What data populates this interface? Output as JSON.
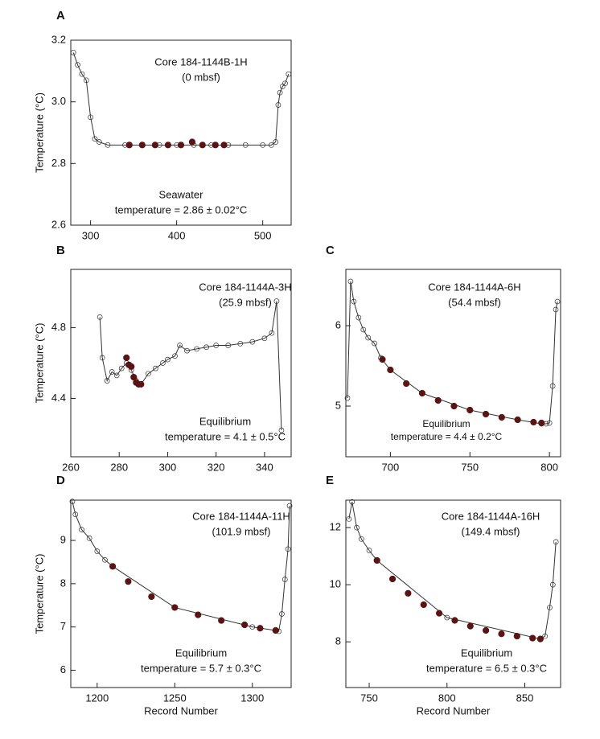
{
  "chart_data": [
    {
      "type": "scatter",
      "panel": "A",
      "xlim": [
        277,
        533
      ],
      "ylim": [
        2.6,
        3.2
      ],
      "xticks": [
        300,
        400,
        500
      ],
      "yticks": [
        2.6,
        2.8,
        {
          "value": 3.0,
          "label": "3.0"
        },
        3.2
      ],
      "ylabel": "Temperature (°C)",
      "annotations": {
        "top": [
          "Core 184-1144B-1H",
          "(0 mbsf)"
        ],
        "bottom": [
          "Seawater",
          "temperature = 2.86 ± 0.02°C"
        ]
      },
      "series": [
        {
          "color": "#333333",
          "marker": "open",
          "line": true,
          "x": [
            280,
            285,
            290,
            295,
            300,
            305,
            310,
            320,
            340,
            360,
            380,
            400,
            420,
            440,
            460,
            480,
            500,
            510,
            515,
            518,
            520,
            523,
            526,
            530
          ],
          "values": [
            3.16,
            3.12,
            3.09,
            3.07,
            2.95,
            2.88,
            2.87,
            2.86,
            2.86,
            2.86,
            2.86,
            2.86,
            2.86,
            2.86,
            2.86,
            2.86,
            2.86,
            2.86,
            2.87,
            2.99,
            3.03,
            3.05,
            3.06,
            3.09
          ]
        },
        {
          "color": "#5a1414",
          "marker": "filled",
          "line": false,
          "x": [
            345,
            360,
            375,
            390,
            405,
            418,
            430,
            445,
            455
          ],
          "values": [
            2.86,
            2.86,
            2.86,
            2.86,
            2.86,
            2.87,
            2.86,
            2.86,
            2.86
          ]
        }
      ]
    },
    {
      "type": "scatter",
      "panel": "B",
      "xlim": [
        260,
        351
      ],
      "ylim": [
        4.07,
        5.13
      ],
      "xticks": [
        260,
        280,
        300,
        320,
        340
      ],
      "yticks": [
        4.4,
        4.8
      ],
      "ylabel": "Temperature (°C)",
      "annotations": {
        "top": [
          "Core 184-1144A-3H",
          "(25.9 mbsf)"
        ],
        "bottom": [
          "Equilibrium",
          "temperature = 4.1 ± 0.5°C"
        ]
      },
      "series": [
        {
          "color": "#333333",
          "marker": "open",
          "line": true,
          "x": [
            272,
            273,
            275,
            277,
            279,
            281,
            283,
            285,
            287,
            289,
            292,
            295,
            298,
            300,
            303,
            305,
            308,
            312,
            316,
            320,
            325,
            330,
            335,
            340,
            343,
            345,
            347
          ],
          "values": [
            4.86,
            4.63,
            4.5,
            4.55,
            4.53,
            4.57,
            4.6,
            4.56,
            4.5,
            4.48,
            4.54,
            4.57,
            4.6,
            4.62,
            4.64,
            4.7,
            4.67,
            4.68,
            4.69,
            4.7,
            4.7,
            4.71,
            4.72,
            4.74,
            4.77,
            4.95,
            4.22
          ]
        },
        {
          "color": "#5a1414",
          "marker": "filled",
          "line": false,
          "x": [
            283,
            284,
            285,
            286,
            287,
            288,
            289
          ],
          "values": [
            4.63,
            4.59,
            4.58,
            4.52,
            4.49,
            4.48,
            4.48
          ]
        }
      ]
    },
    {
      "type": "scatter",
      "panel": "C",
      "xlim": [
        672,
        807
      ],
      "ylim": [
        4.37,
        6.7
      ],
      "xticks": [
        700,
        750,
        800
      ],
      "yticks": [
        5,
        6
      ],
      "annotations": {
        "top": [
          "Core 184-1144A-6H",
          "(54.4 mbsf)"
        ],
        "bottom": [
          "Equilibrium",
          "temperature = 4.4 ± 0.2°C"
        ]
      },
      "series": [
        {
          "color": "#333333",
          "marker": "open",
          "line": true,
          "x": [
            673,
            675,
            677,
            680,
            683,
            686,
            690,
            694,
            700,
            720,
            750,
            780,
            795,
            798,
            800,
            802,
            804,
            805
          ],
          "values": [
            5.1,
            6.55,
            6.3,
            6.1,
            5.95,
            5.85,
            5.78,
            5.6,
            5.45,
            5.16,
            4.95,
            4.83,
            4.78,
            4.78,
            4.79,
            5.25,
            6.2,
            6.3
          ]
        },
        {
          "color": "#5a1414",
          "marker": "filled",
          "line": false,
          "x": [
            695,
            700,
            710,
            720,
            730,
            740,
            750,
            760,
            770,
            780,
            790,
            795
          ],
          "values": [
            5.58,
            5.45,
            5.28,
            5.16,
            5.07,
            5.0,
            4.95,
            4.9,
            4.86,
            4.83,
            4.8,
            4.79
          ]
        }
      ]
    },
    {
      "type": "scatter",
      "panel": "D",
      "xlim": [
        1183,
        1325
      ],
      "ylim": [
        5.6,
        9.93
      ],
      "xticks": [
        1200,
        1250,
        1300
      ],
      "yticks": [
        6,
        7,
        8,
        9
      ],
      "ylabel": "Temperature (°C)",
      "xlabel": "Record Number",
      "annotations": {
        "top": [
          "Core 184-1144A-11H",
          "(101.9 mbsf)"
        ],
        "bottom": [
          "Equilibrium",
          "temperature = 5.7 ± 0.3°C"
        ]
      },
      "series": [
        {
          "color": "#333333",
          "marker": "open",
          "line": true,
          "x": [
            1184,
            1186,
            1190,
            1195,
            1200,
            1205,
            1210,
            1250,
            1300,
            1315,
            1317,
            1319,
            1321,
            1323,
            1324
          ],
          "values": [
            9.9,
            9.6,
            9.25,
            9.05,
            8.75,
            8.55,
            8.4,
            7.45,
            7.0,
            6.92,
            6.9,
            7.3,
            8.1,
            8.8,
            9.8
          ]
        },
        {
          "color": "#5a1414",
          "marker": "filled",
          "line": false,
          "x": [
            1210,
            1220,
            1235,
            1250,
            1265,
            1280,
            1295,
            1305,
            1315
          ],
          "values": [
            8.4,
            8.05,
            7.7,
            7.45,
            7.28,
            7.15,
            7.05,
            6.97,
            6.92
          ]
        }
      ]
    },
    {
      "type": "scatter",
      "panel": "E",
      "xlim": [
        735,
        873
      ],
      "ylim": [
        6.4,
        12.96
      ],
      "xticks": [
        750,
        800,
        850
      ],
      "yticks": [
        8,
        10,
        12
      ],
      "xlabel": "Record Number",
      "annotations": {
        "top": [
          "Core 184-1144A-16H",
          "(149.4 mbsf)"
        ],
        "bottom": [
          "Equilibrium",
          "temperature = 6.5 ± 0.3°C"
        ]
      },
      "series": [
        {
          "color": "#333333",
          "marker": "open",
          "line": true,
          "x": [
            737,
            739,
            742,
            745,
            750,
            755,
            800,
            860,
            863,
            866,
            868,
            870
          ],
          "values": [
            12.3,
            12.9,
            12.0,
            11.6,
            11.2,
            10.85,
            8.85,
            8.1,
            8.2,
            9.2,
            10.0,
            11.5
          ]
        },
        {
          "color": "#5a1414",
          "marker": "filled",
          "line": false,
          "x": [
            755,
            765,
            775,
            785,
            795,
            805,
            815,
            825,
            835,
            845,
            855,
            860
          ],
          "values": [
            10.85,
            10.2,
            9.7,
            9.3,
            9.0,
            8.75,
            8.55,
            8.4,
            8.28,
            8.2,
            8.13,
            8.1
          ]
        }
      ]
    }
  ]
}
